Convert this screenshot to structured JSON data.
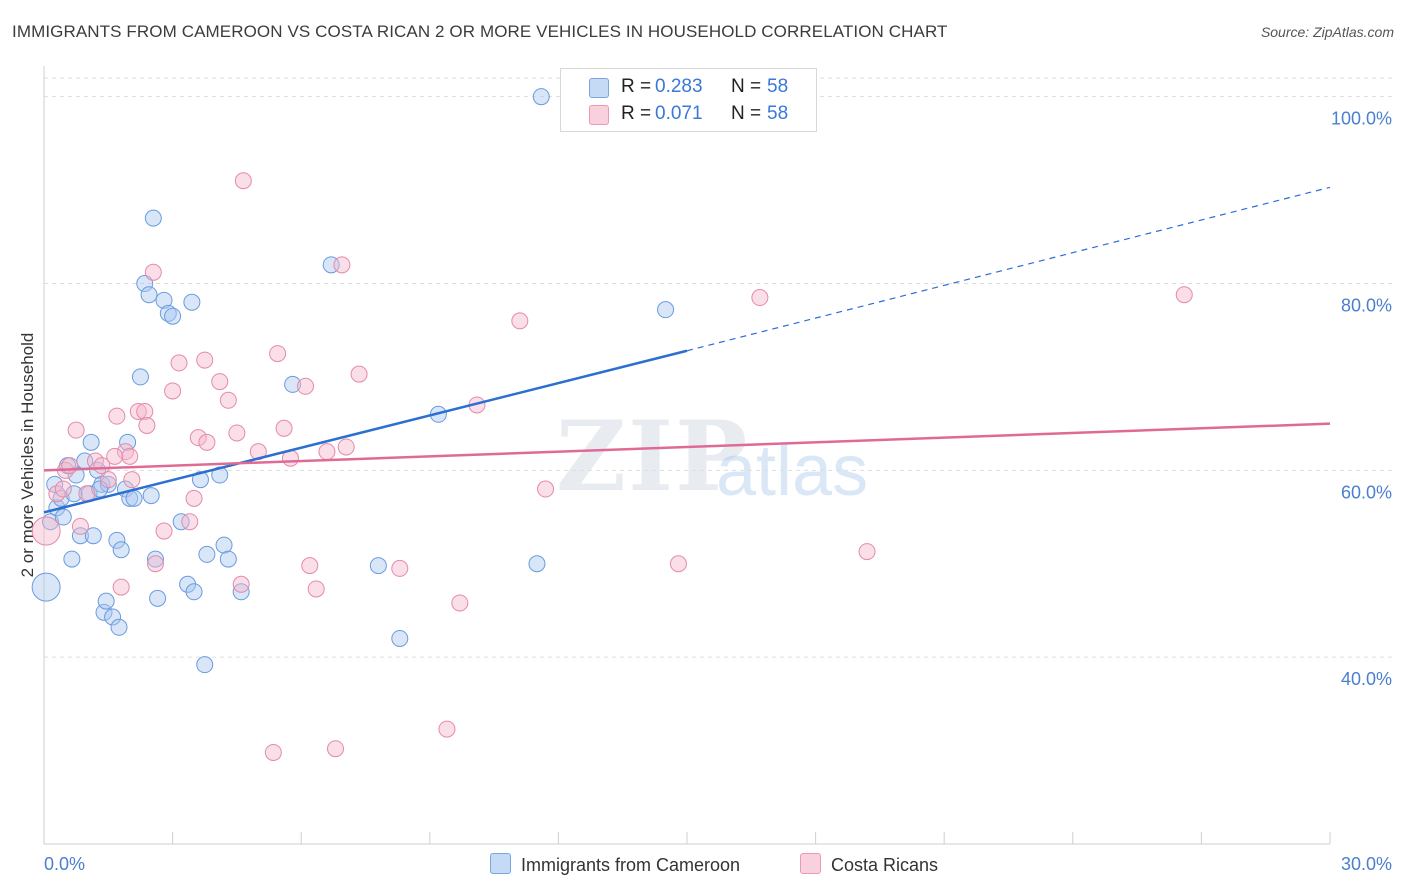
{
  "header": {
    "title": "IMMIGRANTS FROM CAMEROON VS COSTA RICAN 2 OR MORE VEHICLES IN HOUSEHOLD CORRELATION CHART",
    "source": "Source: ZipAtlas.com"
  },
  "watermark": {
    "zip": "ZIP",
    "atlas": "atlas"
  },
  "legend": {
    "r_label": "R =",
    "n_label": "N =",
    "series": [
      {
        "r": "0.283",
        "n": "58"
      },
      {
        "r": "0.071",
        "n": "58"
      }
    ]
  },
  "colors": {
    "blue_fill": "#a9c8f0",
    "blue_stroke": "#6a9be0",
    "blue_line": "#2b6fd0",
    "pink_fill": "#f5b8cb",
    "pink_stroke": "#e58aa8",
    "pink_line": "#e06a96",
    "grid": "#dddddd",
    "tick_text": "#4a7fd0"
  },
  "chart_data": {
    "type": "scatter",
    "title": "IMMIGRANTS FROM CAMEROON VS COSTA RICAN 2 OR MORE VEHICLES IN HOUSEHOLD CORRELATION CHART",
    "xlabel": "",
    "ylabel": "2 or more Vehicles in Household",
    "xlim": [
      0,
      30
    ],
    "ylim": [
      20,
      102
    ],
    "x_tick_labels": [
      {
        "value": 0,
        "label": "0.0%"
      },
      {
        "value": 30,
        "label": "30.0%"
      }
    ],
    "y_tick_labels": [
      {
        "value": 40,
        "label": "40.0%"
      },
      {
        "value": 60,
        "label": "60.0%"
      },
      {
        "value": 80,
        "label": "80.0%"
      },
      {
        "value": 100,
        "label": "100.0%"
      }
    ],
    "series": [
      {
        "name": "Immigrants from Cameroon",
        "color": "#a9c8f0",
        "trend": {
          "x0": 0,
          "y0": 55.5,
          "x1": 15,
          "y1": 72.8,
          "dash_to_x": 30,
          "dash_to_y": 90.3
        },
        "points": [
          [
            0.05,
            47.5
          ],
          [
            0.15,
            54.5
          ],
          [
            0.25,
            58.5
          ],
          [
            0.3,
            56
          ],
          [
            0.4,
            57
          ],
          [
            0.45,
            55
          ],
          [
            0.55,
            60.5
          ],
          [
            0.65,
            50.5
          ],
          [
            0.75,
            59.5
          ],
          [
            0.85,
            53
          ],
          [
            0.95,
            61
          ],
          [
            1.05,
            57.5
          ],
          [
            1.1,
            63
          ],
          [
            1.15,
            53
          ],
          [
            1.25,
            60
          ],
          [
            1.35,
            58.5
          ],
          [
            1.4,
            44.8
          ],
          [
            1.45,
            46
          ],
          [
            1.5,
            58.5
          ],
          [
            1.6,
            44.3
          ],
          [
            1.7,
            52.5
          ],
          [
            1.75,
            43.2
          ],
          [
            1.8,
            51.5
          ],
          [
            1.9,
            58
          ],
          [
            1.95,
            63
          ],
          [
            2.0,
            57
          ],
          [
            2.1,
            57
          ],
          [
            2.25,
            70
          ],
          [
            2.35,
            80
          ],
          [
            2.45,
            78.8
          ],
          [
            2.5,
            57.3
          ],
          [
            2.55,
            87
          ],
          [
            2.6,
            50.5
          ],
          [
            2.65,
            46.3
          ],
          [
            2.8,
            78.2
          ],
          [
            2.9,
            76.8
          ],
          [
            3.0,
            76.5
          ],
          [
            3.2,
            54.5
          ],
          [
            3.35,
            47.8
          ],
          [
            3.45,
            78
          ],
          [
            3.5,
            47
          ],
          [
            3.65,
            59
          ],
          [
            3.75,
            39.2
          ],
          [
            3.8,
            51
          ],
          [
            4.1,
            59.5
          ],
          [
            4.2,
            52
          ],
          [
            4.3,
            50.5
          ],
          [
            4.6,
            47
          ],
          [
            5.8,
            69.2
          ],
          [
            6.7,
            82
          ],
          [
            7.8,
            49.8
          ],
          [
            8.3,
            42
          ],
          [
            9.2,
            66
          ],
          [
            11.6,
            100
          ],
          [
            11.5,
            50
          ],
          [
            14.5,
            77.2
          ],
          [
            0.7,
            57.5
          ],
          [
            1.3,
            58
          ]
        ]
      },
      {
        "name": "Costa Ricans",
        "color": "#f5b8cb",
        "trend": {
          "x0": 0,
          "y0": 60.0,
          "x1": 30,
          "y1": 65.0
        },
        "points": [
          [
            0.05,
            53.5
          ],
          [
            0.3,
            57.5
          ],
          [
            0.5,
            60
          ],
          [
            0.6,
            60.5
          ],
          [
            0.75,
            64.3
          ],
          [
            0.85,
            54
          ],
          [
            1.0,
            57.5
          ],
          [
            1.2,
            61
          ],
          [
            1.35,
            60.5
          ],
          [
            1.5,
            59
          ],
          [
            1.7,
            65.8
          ],
          [
            1.8,
            47.5
          ],
          [
            1.9,
            62
          ],
          [
            2.0,
            61.5
          ],
          [
            2.2,
            66.3
          ],
          [
            2.35,
            66.3
          ],
          [
            2.4,
            64.8
          ],
          [
            2.55,
            81.2
          ],
          [
            2.6,
            50
          ],
          [
            2.8,
            53.5
          ],
          [
            3.0,
            68.5
          ],
          [
            3.15,
            71.5
          ],
          [
            3.4,
            54.5
          ],
          [
            3.5,
            57
          ],
          [
            3.6,
            63.5
          ],
          [
            3.75,
            71.8
          ],
          [
            3.8,
            63
          ],
          [
            4.1,
            69.5
          ],
          [
            4.3,
            67.5
          ],
          [
            4.5,
            64
          ],
          [
            4.6,
            47.8
          ],
          [
            4.65,
            91
          ],
          [
            5.0,
            62
          ],
          [
            5.35,
            29.8
          ],
          [
            5.45,
            72.5
          ],
          [
            5.6,
            64.5
          ],
          [
            5.75,
            61.3
          ],
          [
            6.1,
            69
          ],
          [
            6.2,
            49.8
          ],
          [
            6.35,
            47.3
          ],
          [
            6.6,
            62
          ],
          [
            6.8,
            30.2
          ],
          [
            6.95,
            82
          ],
          [
            7.05,
            62.5
          ],
          [
            7.35,
            70.3
          ],
          [
            8.3,
            49.5
          ],
          [
            9.4,
            32.3
          ],
          [
            9.7,
            45.8
          ],
          [
            10.1,
            67
          ],
          [
            11.1,
            76
          ],
          [
            11.7,
            58
          ],
          [
            14.8,
            50
          ],
          [
            16.7,
            78.5
          ],
          [
            19.2,
            51.3
          ],
          [
            26.6,
            78.8
          ],
          [
            1.65,
            61.5
          ],
          [
            0.45,
            58
          ],
          [
            2.05,
            59
          ]
        ]
      }
    ]
  },
  "bottom_legend": [
    "Immigrants from Cameroon",
    "Costa Ricans"
  ]
}
